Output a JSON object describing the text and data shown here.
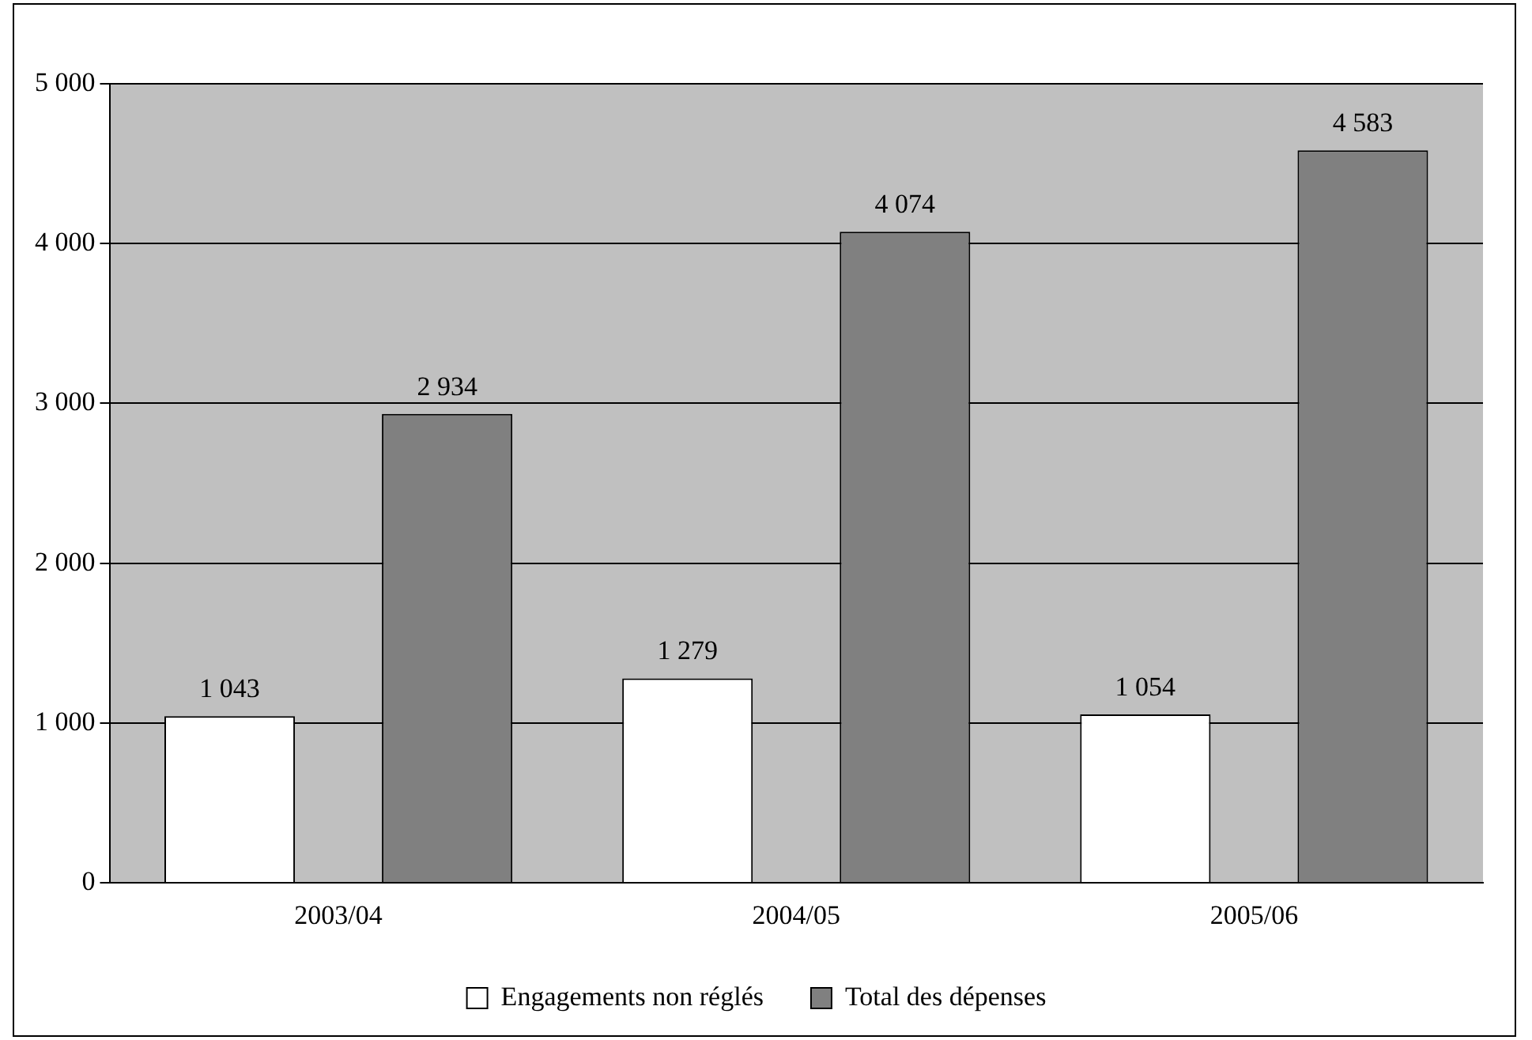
{
  "chart_data": {
    "type": "bar",
    "categories": [
      "2003/04",
      "2004/05",
      "2005/06"
    ],
    "series": [
      {
        "name": "Engagements non réglés",
        "color": "#ffffff",
        "values": [
          1043,
          1279,
          1054
        ],
        "value_labels": [
          "1 043",
          "1 279",
          "1 054"
        ]
      },
      {
        "name": "Total des dépenses",
        "color": "#808080",
        "values": [
          2934,
          4074,
          4583
        ],
        "value_labels": [
          "2 934",
          "4 074",
          "4 583"
        ]
      }
    ],
    "ylim": [
      0,
      5000
    ],
    "yticks": [
      0,
      {
        "value": 1000,
        "label": "1 000"
      },
      {
        "value": 2000,
        "label": "2 000"
      },
      {
        "value": 3000,
        "label": "3 000"
      },
      {
        "value": 4000,
        "label": "4 000"
      },
      {
        "value": 5000,
        "label": "5 000"
      }
    ],
    "grid": "y",
    "legend": "bottom"
  }
}
